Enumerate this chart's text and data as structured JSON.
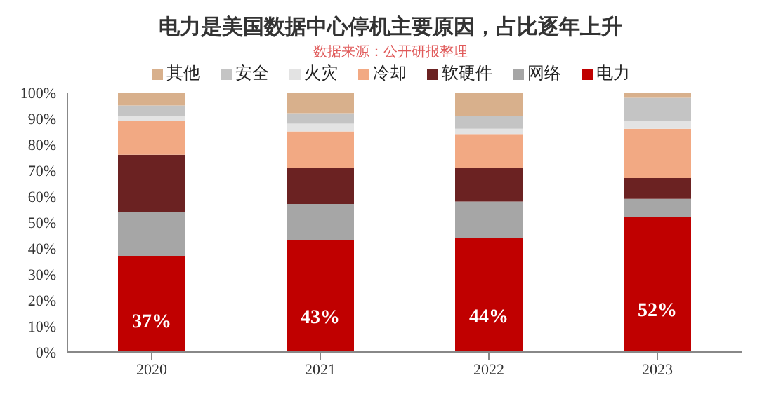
{
  "chart_data": {
    "type": "bar",
    "title": "电力是美国数据中心停机主要原因，占比逐年上升",
    "annotations": [
      "数据来源：公开研报整理"
    ],
    "categories": [
      "2020",
      "2021",
      "2022",
      "2023"
    ],
    "stacked": true,
    "legend": "top",
    "grid": false,
    "ylim": [
      0,
      100
    ],
    "yticks": [
      {
        "value": 0,
        "label": "0%"
      },
      {
        "value": 10,
        "label": "10%"
      },
      {
        "value": 20,
        "label": "20%"
      },
      {
        "value": 30,
        "label": "30%"
      },
      {
        "value": 40,
        "label": "40%"
      },
      {
        "value": 50,
        "label": "50%"
      },
      {
        "value": 60,
        "label": "60%"
      },
      {
        "value": 70,
        "label": "70%"
      },
      {
        "value": 80,
        "label": "80%"
      },
      {
        "value": 90,
        "label": "90%"
      },
      {
        "value": 100,
        "label": "100%"
      }
    ],
    "series": [
      {
        "name": "电力",
        "color": "#c00000",
        "values": [
          37,
          43,
          44,
          52
        ],
        "value_labels": [
          "37%",
          "43%",
          "44%",
          "52%"
        ]
      },
      {
        "name": "网络",
        "color": "#a6a6a6",
        "values": [
          17,
          14,
          14,
          7
        ]
      },
      {
        "name": "软硬件",
        "color": "#6b2222",
        "values": [
          22,
          14,
          13,
          8
        ]
      },
      {
        "name": "冷却",
        "color": "#f2a983",
        "values": [
          13,
          14,
          13,
          19
        ]
      },
      {
        "name": "火灾",
        "color": "#e3e3e3",
        "values": [
          2,
          3,
          2,
          3
        ]
      },
      {
        "name": "安全",
        "color": "#c4c4c4",
        "values": [
          4,
          4,
          5,
          9
        ]
      },
      {
        "name": "其他",
        "color": "#d8b08c",
        "values": [
          5,
          8,
          9,
          2
        ]
      }
    ]
  }
}
